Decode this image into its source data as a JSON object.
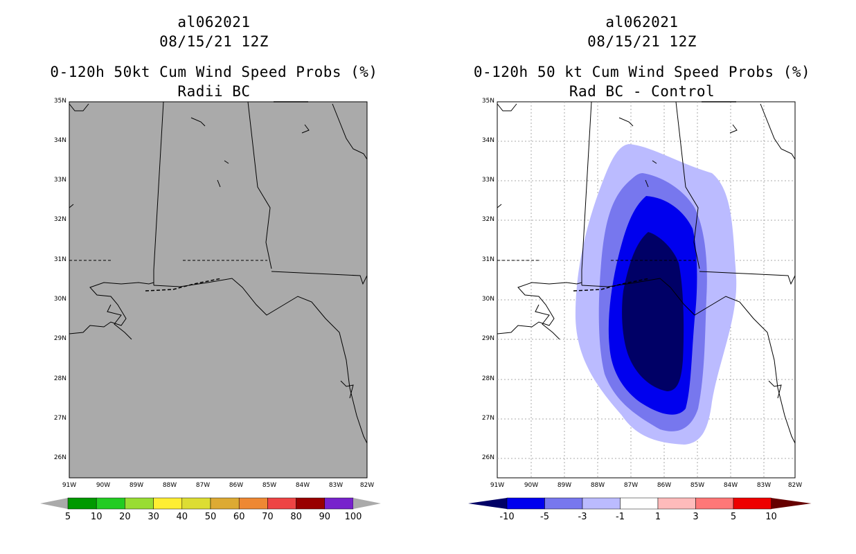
{
  "left": {
    "storm_id": "al062021",
    "datetime": "08/15/21 12Z",
    "title": "0-120h 50kt Cum Wind Speed Probs (%)",
    "subtitle": "Radii BC",
    "lat_labels": [
      "35N",
      "34N",
      "33N",
      "32N",
      "31N",
      "30N",
      "29N",
      "28N",
      "27N",
      "26N"
    ],
    "lon_labels": [
      "91W",
      "90W",
      "89W",
      "88W",
      "87W",
      "86W",
      "85W",
      "84W",
      "83W",
      "82W"
    ],
    "colorbar": {
      "labels": [
        "5",
        "10",
        "20",
        "30",
        "40",
        "50",
        "60",
        "70",
        "80",
        "90",
        "100"
      ],
      "colors": [
        "#009900",
        "#22cc22",
        "#99dd33",
        "#ffee33",
        "#dddd33",
        "#ddaa33",
        "#ee8833",
        "#ee4444",
        "#990000",
        "#7722cc"
      ],
      "end_color": "#aaaaaa"
    },
    "background": "#aaaaaa"
  },
  "right": {
    "storm_id": "al062021",
    "datetime": "08/15/21 12Z",
    "title": "0-120h 50 kt Cum Wind Speed Probs (%)",
    "subtitle": "Rad BC - Control",
    "lat_labels": [
      "35N",
      "34N",
      "33N",
      "32N",
      "31N",
      "30N",
      "29N",
      "28N",
      "27N",
      "26N"
    ],
    "lon_labels": [
      "91W",
      "90W",
      "89W",
      "88W",
      "87W",
      "86W",
      "85W",
      "84W",
      "83W",
      "82W"
    ],
    "colorbar": {
      "labels": [
        "-10",
        "-5",
        "-3",
        "-1",
        "1",
        "3",
        "5",
        "10"
      ],
      "colors": [
        "#0000ee",
        "#7777ee",
        "#bbbbff",
        "#ffffff",
        "#ffbbbb",
        "#ff7777",
        "#ee0000"
      ],
      "low_color": "#000066",
      "high_color": "#660000"
    },
    "contours": {
      "minus1_color": "#bbbbff",
      "minus3_color": "#7777ee",
      "minus5_color": "#0000ee",
      "minus10_color": "#000066"
    }
  }
}
